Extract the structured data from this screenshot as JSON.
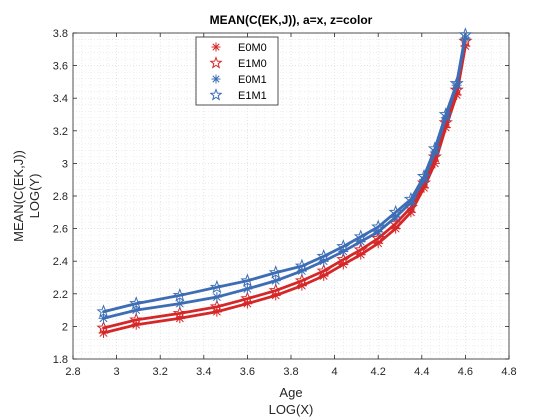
{
  "chart_data": {
    "type": "line",
    "title": "MEAN(C(EK,J)), a=x, z=color",
    "xlabel": [
      "Age",
      "LOG(X)"
    ],
    "ylabel": [
      "MEAN(C(EK,J))",
      "LOG(Y)"
    ],
    "xlim": [
      2.8,
      4.8
    ],
    "ylim": [
      1.8,
      3.8
    ],
    "xticks": [
      "2.8",
      "3",
      "3.2",
      "3.4",
      "3.6",
      "3.8",
      "4",
      "4.2",
      "4.4",
      "4.6",
      "4.8"
    ],
    "yticks": [
      "1.8",
      "2",
      "2.2",
      "2.4",
      "2.6",
      "2.8",
      "3",
      "3.2",
      "3.4",
      "3.6",
      "3.8"
    ],
    "grid": "minor dotted",
    "legend_position": "top-left",
    "x": [
      2.94,
      3.09,
      3.29,
      3.46,
      3.6,
      3.73,
      3.85,
      3.95,
      4.04,
      4.12,
      4.2,
      4.28,
      4.35,
      4.41,
      4.46,
      4.51,
      4.56,
      4.6
    ],
    "series": [
      {
        "name": "E0M0",
        "marker": "asterisk",
        "color": "#d62728",
        "values": [
          1.96,
          2.01,
          2.05,
          2.09,
          2.14,
          2.19,
          2.25,
          2.31,
          2.38,
          2.44,
          2.51,
          2.6,
          2.7,
          2.85,
          3.0,
          3.22,
          3.42,
          3.72
        ]
      },
      {
        "name": "E1M0",
        "marker": "pentagram",
        "color": "#d62728",
        "values": [
          1.99,
          2.04,
          2.08,
          2.12,
          2.17,
          2.22,
          2.28,
          2.34,
          2.41,
          2.47,
          2.54,
          2.63,
          2.73,
          2.88,
          3.04,
          3.25,
          3.45,
          3.75
        ]
      },
      {
        "name": "E0M1",
        "marker": "asterisk",
        "color": "#3c6db5",
        "values": [
          2.05,
          2.1,
          2.14,
          2.18,
          2.23,
          2.28,
          2.34,
          2.4,
          2.46,
          2.52,
          2.58,
          2.67,
          2.76,
          2.9,
          3.07,
          3.28,
          3.48,
          3.77
        ]
      },
      {
        "name": "E1M1",
        "marker": "pentagram",
        "color": "#3c6db5",
        "values": [
          2.09,
          2.14,
          2.19,
          2.24,
          2.28,
          2.33,
          2.37,
          2.43,
          2.49,
          2.55,
          2.61,
          2.7,
          2.78,
          2.92,
          3.09,
          3.3,
          3.49,
          3.79
        ]
      }
    ]
  }
}
